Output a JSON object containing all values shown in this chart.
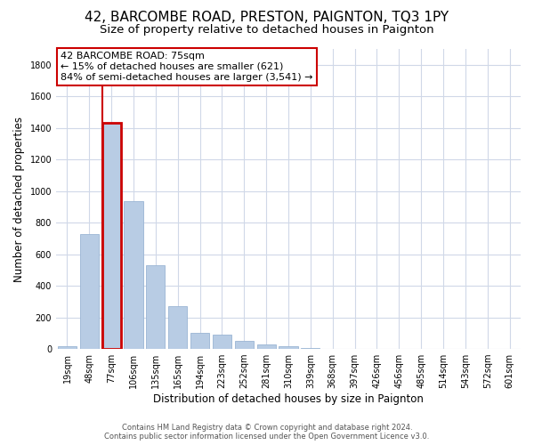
{
  "title": "42, BARCOMBE ROAD, PRESTON, PAIGNTON, TQ3 1PY",
  "subtitle": "Size of property relative to detached houses in Paignton",
  "xlabel": "Distribution of detached houses by size in Paignton",
  "ylabel": "Number of detached properties",
  "categories": [
    "19sqm",
    "48sqm",
    "77sqm",
    "106sqm",
    "135sqm",
    "165sqm",
    "194sqm",
    "223sqm",
    "252sqm",
    "281sqm",
    "310sqm",
    "339sqm",
    "368sqm",
    "397sqm",
    "426sqm",
    "456sqm",
    "485sqm",
    "514sqm",
    "543sqm",
    "572sqm",
    "601sqm"
  ],
  "values": [
    20,
    730,
    1430,
    935,
    530,
    270,
    100,
    90,
    50,
    28,
    15,
    5,
    1,
    0,
    0,
    0,
    0,
    0,
    0,
    0,
    0
  ],
  "bar_color": "#b8cce4",
  "bar_edge_color": "#9ab5d4",
  "highlight_bar_index": 2,
  "highlight_color": "#cc0000",
  "annotation_text": "42 BARCOMBE ROAD: 75sqm\n← 15% of detached houses are smaller (621)\n84% of semi-detached houses are larger (3,541) →",
  "annotation_box_color": "#ffffff",
  "annotation_box_edge_color": "#cc0000",
  "ylim": [
    0,
    1900
  ],
  "yticks": [
    0,
    200,
    400,
    600,
    800,
    1000,
    1200,
    1400,
    1600,
    1800
  ],
  "footer": "Contains HM Land Registry data © Crown copyright and database right 2024.\nContains public sector information licensed under the Open Government Licence v3.0.",
  "background_color": "#ffffff",
  "grid_color": "#d0d8e8",
  "title_fontsize": 11,
  "subtitle_fontsize": 9.5,
  "axis_label_fontsize": 8.5,
  "tick_fontsize": 7,
  "annotation_fontsize": 8,
  "footer_fontsize": 6
}
